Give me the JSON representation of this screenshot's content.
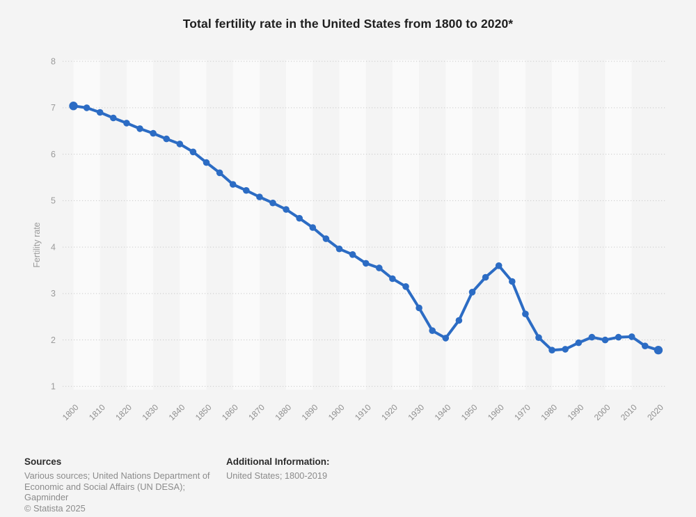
{
  "title": "Total fertility rate in the United States from 1800 to 2020*",
  "chart_data": {
    "type": "line",
    "title": "Total fertility rate in the United States from 1800 to 2020*",
    "xlabel": "",
    "ylabel": "Fertility rate",
    "x": [
      1800,
      1805,
      1810,
      1815,
      1820,
      1825,
      1830,
      1835,
      1840,
      1845,
      1850,
      1855,
      1860,
      1865,
      1870,
      1875,
      1880,
      1885,
      1890,
      1895,
      1900,
      1905,
      1910,
      1915,
      1920,
      1925,
      1930,
      1935,
      1940,
      1945,
      1950,
      1955,
      1960,
      1965,
      1970,
      1975,
      1980,
      1985,
      1990,
      1995,
      2000,
      2005,
      2010,
      2015,
      2020
    ],
    "values": [
      7.04,
      7.0,
      6.9,
      6.78,
      6.67,
      6.55,
      6.45,
      6.33,
      6.22,
      6.05,
      5.82,
      5.6,
      5.35,
      5.22,
      5.08,
      4.95,
      4.81,
      4.62,
      4.42,
      4.18,
      3.96,
      3.84,
      3.65,
      3.55,
      3.32,
      3.15,
      2.69,
      2.2,
      2.04,
      2.42,
      3.03,
      3.35,
      3.6,
      3.26,
      2.56,
      2.05,
      1.78,
      1.8,
      1.94,
      2.06,
      2.0,
      2.06,
      2.07,
      1.87,
      1.78
    ],
    "x_ticks": [
      "1800",
      "1810",
      "1820",
      "1830",
      "1840",
      "1850",
      "1860",
      "1870",
      "1880",
      "1890",
      "1900",
      "1910",
      "1920",
      "1930",
      "1940",
      "1950",
      "1960",
      "1970",
      "1980",
      "1990",
      "2000",
      "2010",
      "2020"
    ],
    "y_ticks": [
      1,
      2,
      3,
      4,
      5,
      6,
      7,
      8
    ],
    "ylim": [
      1,
      8
    ],
    "xlim": [
      1800,
      2020
    ],
    "grid": "horizontal-dotted",
    "legend": "none",
    "marker": "circle"
  },
  "colors": {
    "line": "#2c6cc4",
    "background": "#f4f4f4",
    "band": "#fafafa",
    "grid": "#c9c9c9",
    "axis_text": "#9a9a9a",
    "title_text": "#1f1f1f"
  },
  "footer": {
    "sources_label": "Sources",
    "sources_lines": [
      "Various sources; United Nations Department of",
      "Economic and Social Affairs (UN DESA);",
      "Gapminder"
    ],
    "copyright": "© Statista 2025",
    "additional_label": "Additional Information:",
    "additional_value": "United States; 1800-2019"
  }
}
